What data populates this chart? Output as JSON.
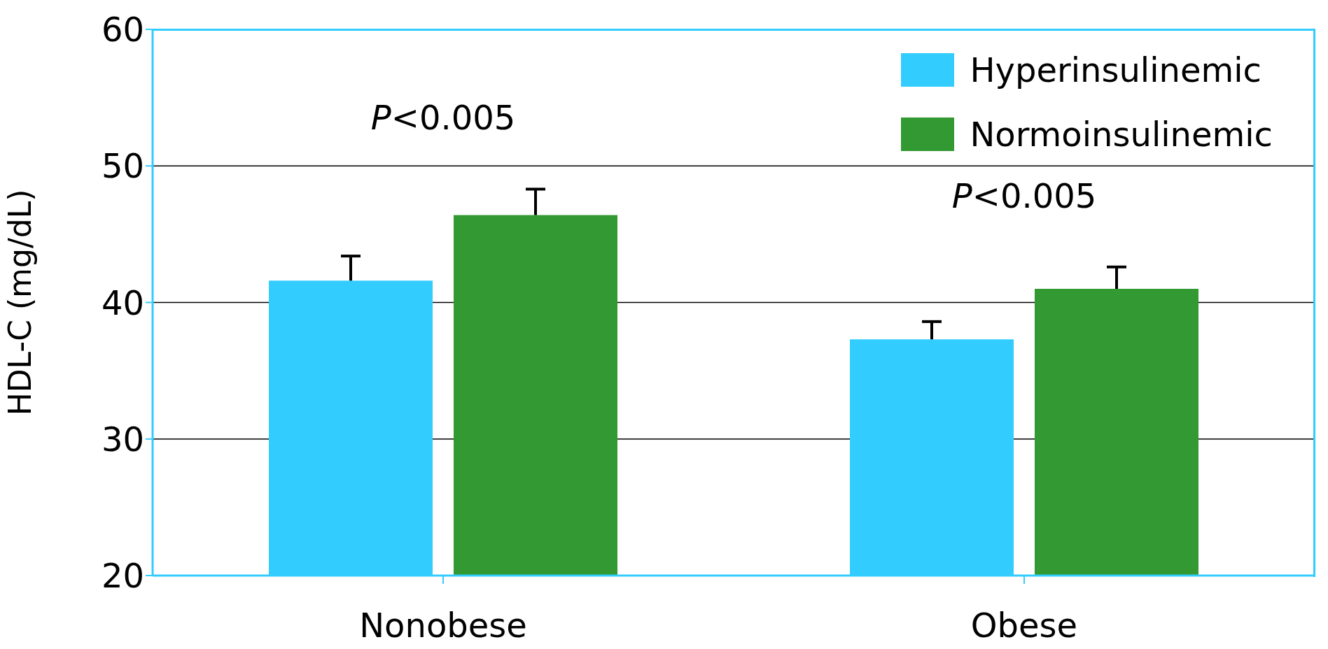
{
  "chart_data": {
    "type": "bar",
    "ylabel": "HDL-C (mg/dL)",
    "categories": [
      "Nonobese",
      "Obese"
    ],
    "series": [
      {
        "name": "Hyperinsulinemic",
        "color": "#33ccff",
        "values": [
          41.6,
          37.3
        ],
        "errors": [
          [
            41.6,
            43.4
          ],
          [
            37.3,
            38.6
          ]
        ]
      },
      {
        "name": "Normoinsulinemic",
        "color": "#339933",
        "values": [
          46.4,
          41.0
        ],
        "errors": [
          [
            46.4,
            48.3
          ],
          [
            41.0,
            42.6
          ]
        ]
      }
    ],
    "ylim": [
      20,
      60
    ],
    "yticks": [
      20,
      30,
      40,
      50,
      60
    ],
    "grid": "y",
    "legend": "top right",
    "annotations": [
      "P<0.005",
      "P<0.005"
    ]
  }
}
